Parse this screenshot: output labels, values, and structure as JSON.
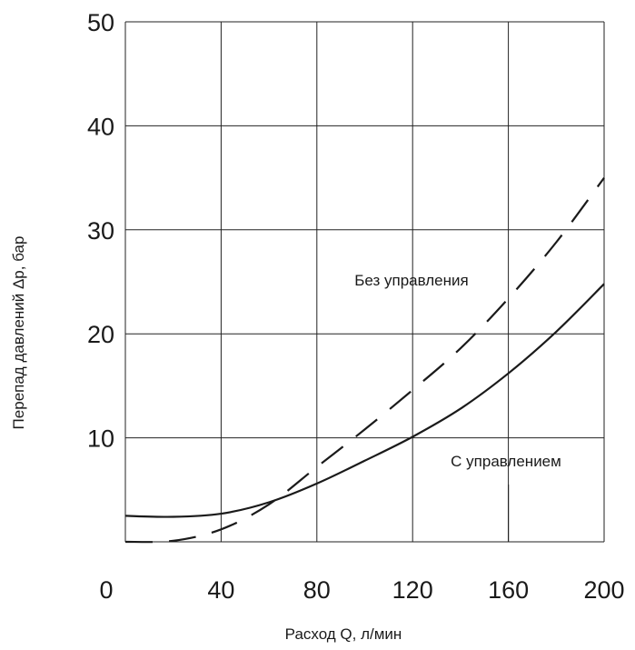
{
  "chart_data": {
    "type": "line",
    "title": "",
    "xlabel": "Расход Q, л/мин",
    "ylabel": "Перепад давлений Δp, бар",
    "xlim": [
      0,
      200
    ],
    "ylim": [
      0,
      50
    ],
    "x_ticks": [
      0,
      40,
      80,
      120,
      160,
      200
    ],
    "x_tick_labels": [
      "0",
      "40",
      "80",
      "120",
      "160",
      "200"
    ],
    "y_ticks": [
      10,
      20,
      30,
      40,
      50
    ],
    "y_tick_labels": [
      "10",
      "20",
      "30",
      "40",
      "50"
    ],
    "grid": true,
    "legend": "none",
    "series": [
      {
        "name": "Без управления",
        "style": "dashed",
        "color": "#1a1a1a",
        "x": [
          0,
          20,
          40,
          60,
          80,
          100,
          120,
          140,
          160,
          180,
          200
        ],
        "y": [
          0,
          0.1,
          1.2,
          3.6,
          7.2,
          10.8,
          14.6,
          18.6,
          23.4,
          28.8,
          35
        ]
      },
      {
        "name": "С управлением",
        "style": "solid",
        "color": "#1a1a1a",
        "x": [
          0,
          20,
          40,
          60,
          80,
          100,
          120,
          140,
          160,
          180,
          200
        ],
        "y": [
          2.5,
          2.4,
          2.7,
          3.8,
          5.6,
          7.8,
          10.1,
          12.8,
          16.2,
          20.2,
          24.8
        ]
      }
    ],
    "annotations": [
      {
        "text": "Без управления",
        "x": 140,
        "y": 25
      },
      {
        "text": "С управлением",
        "x": 160,
        "y": 9
      }
    ]
  }
}
